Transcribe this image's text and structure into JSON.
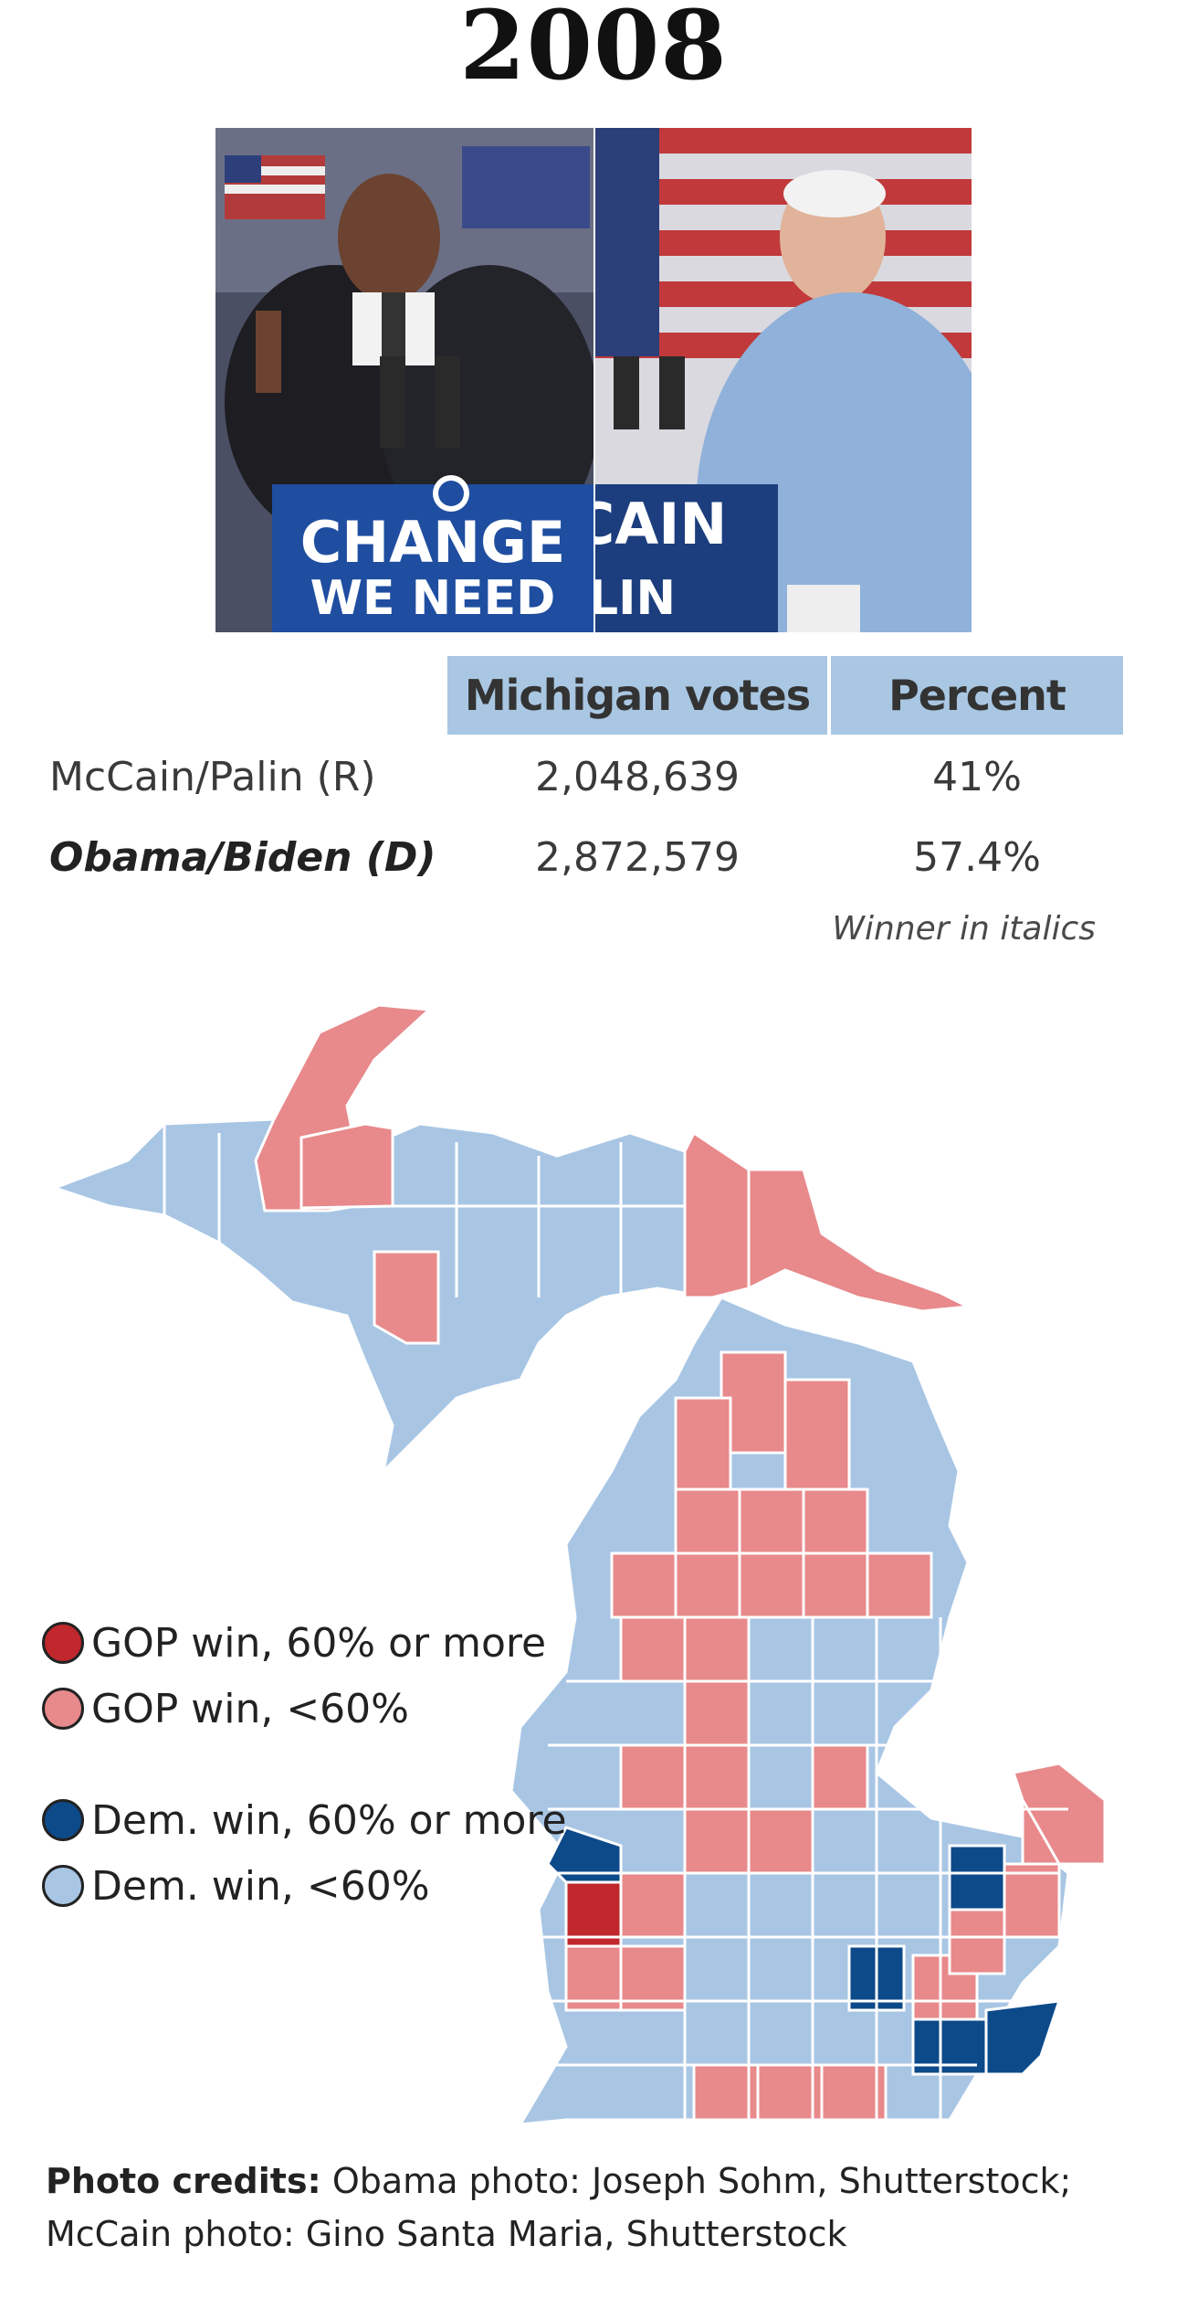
{
  "title": "2008",
  "photos": {
    "left_sign_line1": "CHANGE",
    "left_sign_line2": "WE NEED",
    "right_sign_line1": "CAIN",
    "right_sign_line2": "LIN"
  },
  "table": {
    "headers": [
      "Michigan votes",
      "Percent"
    ],
    "rows": [
      {
        "candidate": "McCain/Palin (R)",
        "votes": "2,048,639",
        "percent": "41%",
        "winner": false
      },
      {
        "candidate": "Obama/Biden (D)",
        "votes": "2,872,579",
        "percent": "57.4%",
        "winner": true
      }
    ],
    "note": "Winner in italics"
  },
  "legend": [
    {
      "label": "GOP win, 60% or more",
      "color": "#c0282d"
    },
    {
      "label": "GOP win, <60%",
      "color": "#e8898b"
    },
    {
      "label": "Dem. win, 60% or more",
      "color": "#0d4a8a"
    },
    {
      "label": "Dem. win, <60%",
      "color": "#a8c6e4"
    }
  ],
  "map_colors": {
    "gop_strong": "#c0282d",
    "gop": "#e8898b",
    "dem_strong": "#0d4a8a",
    "dem": "#a8c6e4"
  },
  "credits": {
    "label": "Photo credits:",
    "line1": "Obama photo: Joseph Sohm, Shutterstock;",
    "line2": "McCain photo: Gino Santa Maria, Shutterstock"
  }
}
